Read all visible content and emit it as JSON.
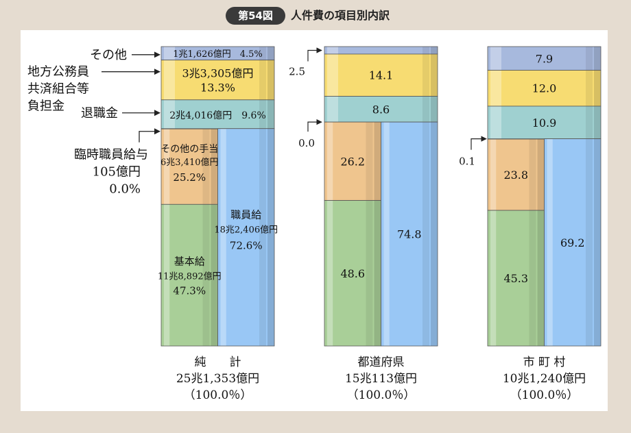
{
  "figure": {
    "badge": "第54図",
    "title": "人件費の項目別内訳"
  },
  "chart_data": {
    "type": "bar",
    "stacked": true,
    "categories": [
      "純　　計",
      "都道府県",
      "市 町 村"
    ],
    "totals": [
      "25兆1,353億円",
      "15兆113億円",
      "10兆1,240億円"
    ],
    "totals_pct": [
      "（100.0％）",
      "（100.0％）",
      "（100.0％）"
    ],
    "colors": {
      "その他": "#a7b9dd",
      "地方公務員共済組合等負担金": "#f7dc72",
      "退職金": "#9fd0d0",
      "その他の手当": "#efc58e",
      "基本給": "#a9cf98",
      "職員給": "#99c7f5"
    },
    "series": [
      {
        "name": "その他",
        "values": [
          4.5,
          2.5,
          7.9
        ]
      },
      {
        "name": "地方公務員共済組合等負担金",
        "values": [
          13.3,
          14.1,
          12.0
        ]
      },
      {
        "name": "退職金",
        "values": [
          9.6,
          8.6,
          10.9
        ]
      },
      {
        "name": "臨時職員給与",
        "values": [
          0.0,
          0.0,
          0.1
        ]
      },
      {
        "name": "その他の手当",
        "values": [
          25.2,
          26.2,
          23.8
        ]
      },
      {
        "name": "基本給",
        "values": [
          47.3,
          48.6,
          45.3
        ]
      },
      {
        "name": "職員給",
        "values": [
          72.6,
          74.8,
          69.2
        ]
      }
    ],
    "bar_labels": {
      "col0": {
        "sonota": "1兆1,626億円　4.5%",
        "kyosai": [
          "3兆3,305億円",
          "13.3%"
        ],
        "taishoku": "2兆4,016億円　9.6%",
        "teate": [
          "その他の手当",
          "6兆3,410億円",
          "25.2%"
        ],
        "kihon": [
          "基本給",
          "11兆8,892億円",
          "47.3%"
        ],
        "shokuin": [
          "職員給",
          "18兆2,406億円",
          "72.6%"
        ]
      },
      "col1": {
        "sonota": "2.5",
        "kyosai": "14.1",
        "taishoku": "8.6",
        "rinji": "0.0",
        "teate": "26.2",
        "kihon": "48.6",
        "shokuin": "74.8"
      },
      "col2": {
        "sonota": "7.9",
        "kyosai": "12.0",
        "taishoku": "10.9",
        "rinji": "0.1",
        "teate": "23.8",
        "kihon": "45.3",
        "shokuin": "69.2"
      }
    },
    "annotations": {
      "sonota": "その他",
      "kyosai": [
        "地方公務員",
        "共済組合等",
        "負担金"
      ],
      "taishoku": "退職金",
      "rinji": [
        "臨時職員給与",
        "105億円",
        "0.0%"
      ]
    }
  }
}
